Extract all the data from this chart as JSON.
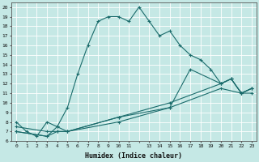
{
  "xlabel": "Humidex (Indice chaleur)",
  "background_color": "#c5e8e5",
  "grid_color": "#aad4d0",
  "line_color": "#1a6b6b",
  "xlim": [
    -0.5,
    23.5
  ],
  "ylim": [
    6,
    20.5
  ],
  "yticks": [
    6,
    7,
    8,
    9,
    10,
    11,
    12,
    13,
    14,
    15,
    16,
    17,
    18,
    19,
    20
  ],
  "line1_x": [
    0,
    1,
    2,
    3,
    4,
    5,
    6,
    7,
    8,
    9,
    10,
    11,
    12,
    13,
    14,
    15,
    16,
    17,
    18,
    19,
    20,
    21,
    22,
    23
  ],
  "line1_y": [
    8.0,
    7.0,
    6.5,
    8.0,
    7.5,
    9.5,
    13.0,
    16.0,
    18.5,
    19.0,
    19.0,
    18.5,
    20.0,
    18.5,
    17.0,
    17.5,
    16.0,
    15.0,
    14.5,
    13.5,
    12.0,
    12.5,
    11.0,
    11.5
  ],
  "line2_x": [
    0,
    3,
    4,
    5,
    10,
    15,
    20,
    21,
    22,
    23
  ],
  "line2_y": [
    7.5,
    7.0,
    7.0,
    7.0,
    8.5,
    10.0,
    12.0,
    12.5,
    11.0,
    11.5
  ],
  "line3_x": [
    0,
    3,
    4,
    5,
    10,
    15,
    20,
    22,
    23
  ],
  "line3_y": [
    7.0,
    6.5,
    7.0,
    7.0,
    8.0,
    9.5,
    11.5,
    11.0,
    11.0
  ],
  "line4_x": [
    0,
    3,
    4,
    5,
    10,
    15,
    17,
    20,
    21,
    22,
    23
  ],
  "line4_y": [
    7.0,
    6.5,
    7.5,
    7.0,
    8.5,
    9.5,
    13.5,
    12.0,
    12.5,
    11.0,
    11.5
  ]
}
